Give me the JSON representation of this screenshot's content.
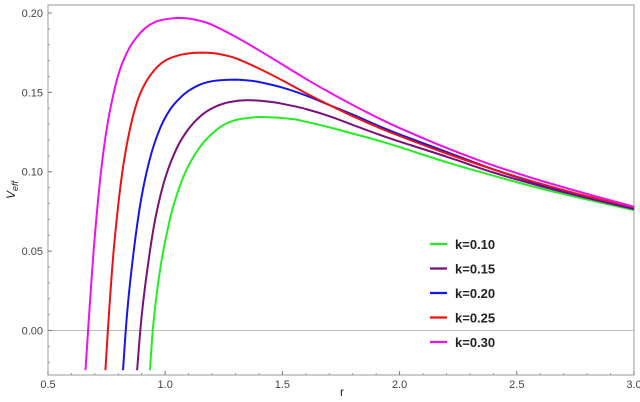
{
  "chart_data": {
    "type": "line",
    "xlabel": "r",
    "ylabel_main": "V",
    "ylabel_sub": "eff",
    "xlim": [
      0.5,
      3.0
    ],
    "ylim": [
      -0.028,
      0.205
    ],
    "x_ticks": [
      "0.5",
      "1.0",
      "1.5",
      "2.0",
      "2.5",
      "3.0"
    ],
    "y_ticks": [
      "0.00",
      "0.05",
      "0.10",
      "0.15",
      "0.20"
    ],
    "grid": false,
    "legend_position": "lower-right",
    "series": [
      {
        "name": "k=0.10",
        "color": "#22ee22",
        "x": [
          0.935,
          0.95,
          0.98,
          1.02,
          1.06,
          1.1,
          1.15,
          1.2,
          1.25,
          1.3,
          1.35,
          1.4,
          1.45,
          1.5,
          1.55,
          1.6,
          1.7,
          1.8,
          1.9,
          2.0,
          2.2,
          2.4,
          2.6,
          2.8,
          3.0
        ],
        "y": [
          -0.025,
          0.005,
          0.04,
          0.07,
          0.09,
          0.104,
          0.116,
          0.124,
          0.1295,
          0.1325,
          0.1338,
          0.1345,
          0.1343,
          0.1338,
          0.133,
          0.1315,
          0.128,
          0.124,
          0.12,
          0.1155,
          0.106,
          0.0975,
          0.0895,
          0.0825,
          0.0758
        ]
      },
      {
        "name": "k=0.15",
        "color": "#7a0f7a",
        "x": [
          0.88,
          0.9,
          0.93,
          0.96,
          1.0,
          1.05,
          1.1,
          1.15,
          1.2,
          1.25,
          1.3,
          1.35,
          1.4,
          1.45,
          1.5,
          1.6,
          1.7,
          1.8,
          1.9,
          2.0,
          2.2,
          2.4,
          2.6,
          2.8,
          3.0
        ],
        "y": [
          -0.025,
          0.01,
          0.045,
          0.072,
          0.096,
          0.115,
          0.127,
          0.135,
          0.14,
          0.143,
          0.1445,
          0.145,
          0.1448,
          0.144,
          0.1428,
          0.1395,
          0.135,
          0.1295,
          0.124,
          0.119,
          0.1095,
          0.0995,
          0.091,
          0.0835,
          0.0765
        ]
      },
      {
        "name": "k=0.20",
        "color": "#1515ee",
        "x": [
          0.82,
          0.84,
          0.87,
          0.9,
          0.94,
          0.98,
          1.02,
          1.06,
          1.1,
          1.15,
          1.2,
          1.25,
          1.3,
          1.35,
          1.4,
          1.5,
          1.6,
          1.7,
          1.8,
          1.9,
          2.0,
          2.2,
          2.4,
          2.6,
          2.8,
          3.0
        ],
        "y": [
          -0.025,
          0.015,
          0.055,
          0.085,
          0.111,
          0.128,
          0.139,
          0.146,
          0.151,
          0.155,
          0.157,
          0.1578,
          0.158,
          0.1575,
          0.1565,
          0.153,
          0.148,
          0.142,
          0.136,
          0.1295,
          0.1235,
          0.1125,
          0.1015,
          0.092,
          0.084,
          0.077
        ]
      },
      {
        "name": "k=0.25",
        "color": "#ee1111",
        "x": [
          0.745,
          0.76,
          0.78,
          0.81,
          0.84,
          0.88,
          0.92,
          0.96,
          1.0,
          1.05,
          1.1,
          1.15,
          1.2,
          1.25,
          1.3,
          1.4,
          1.5,
          1.6,
          1.7,
          1.8,
          1.9,
          2.0,
          2.2,
          2.4,
          2.6,
          2.8,
          3.0
        ],
        "y": [
          -0.025,
          0.01,
          0.05,
          0.092,
          0.12,
          0.144,
          0.157,
          0.165,
          0.17,
          0.173,
          0.1745,
          0.175,
          0.1748,
          0.1735,
          0.1715,
          0.165,
          0.1575,
          0.1495,
          0.142,
          0.135,
          0.1285,
          0.1225,
          0.1115,
          0.1015,
          0.0925,
          0.0845,
          0.0775
        ]
      },
      {
        "name": "k=0.30",
        "color": "#ee11ee",
        "x": [
          0.66,
          0.68,
          0.7,
          0.73,
          0.76,
          0.8,
          0.84,
          0.88,
          0.92,
          0.96,
          1.0,
          1.05,
          1.1,
          1.15,
          1.2,
          1.3,
          1.4,
          1.5,
          1.6,
          1.7,
          1.8,
          1.9,
          2.0,
          2.2,
          2.4,
          2.6,
          2.8,
          3.0
        ],
        "y": [
          -0.025,
          0.02,
          0.06,
          0.105,
          0.135,
          0.161,
          0.176,
          0.185,
          0.191,
          0.1945,
          0.196,
          0.1968,
          0.1965,
          0.195,
          0.1925,
          0.185,
          0.1765,
          0.1675,
          0.1585,
          0.15,
          0.142,
          0.1345,
          0.1275,
          0.115,
          0.104,
          0.0945,
          0.086,
          0.078
        ]
      }
    ]
  }
}
